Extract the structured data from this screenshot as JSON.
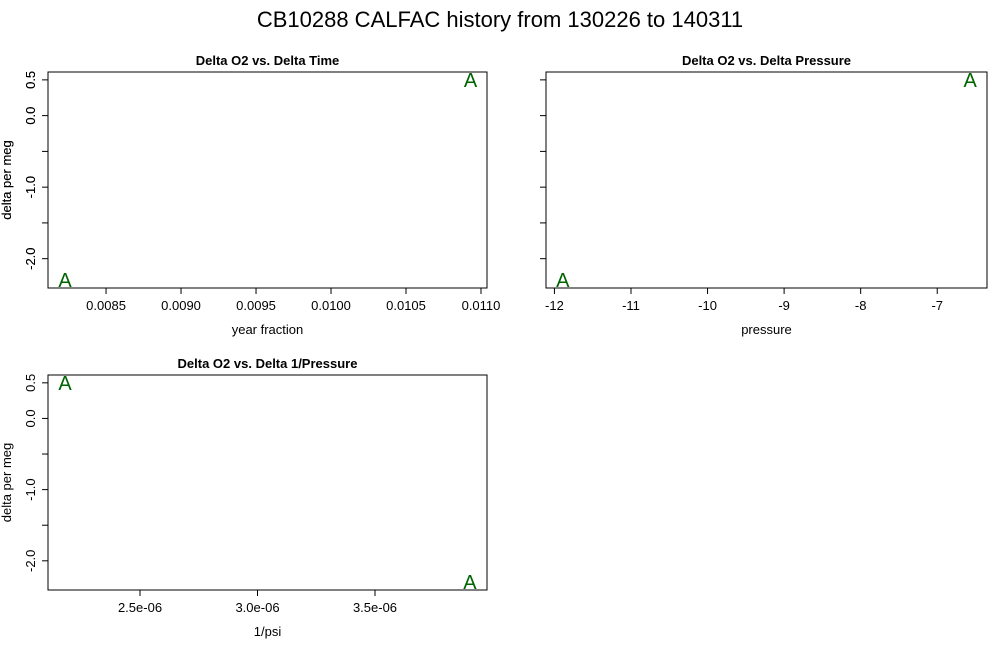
{
  "title": "CB10288   CALFAC history from  130226  to  140311",
  "chart_data": [
    {
      "type": "scatter",
      "title": "Delta O2 vs. Delta Time",
      "x_label": "year fraction",
      "y_label": "delta per meg",
      "marker": "A",
      "color": "#006400",
      "x": [
        0.008227,
        0.01093
      ],
      "values": [
        -2.3,
        0.5
      ],
      "xlim": [
        0.008113,
        0.01104
      ],
      "ylim": [
        -2.41,
        0.61
      ],
      "xticks": [
        0.0085,
        {
          "value": 0.009,
          "label": "0.0090"
        },
        0.0095,
        {
          "value": 0.01,
          "label": "0.0100"
        },
        0.0105,
        {
          "value": 0.011,
          "label": "0.0110"
        }
      ],
      "yticks": [
        0.5,
        {
          "value": 0,
          "label": "0.0"
        },
        {
          "value": -0.5,
          "label": null
        },
        {
          "value": -1,
          "label": "-1.0"
        },
        {
          "value": -1.5,
          "label": null
        },
        {
          "value": -2,
          "label": "-2.0"
        }
      ]
    },
    {
      "type": "scatter",
      "title": "Delta O2 vs. Delta Pressure",
      "x_label": "pressure",
      "y_label": "delta per meg",
      "marker": "A",
      "color": "#006400",
      "x": [
        -11.89,
        -6.57
      ],
      "values": [
        -2.3,
        0.5
      ],
      "xlim": [
        -12.11,
        -6.35
      ],
      "ylim": [
        -2.41,
        0.61
      ],
      "xticks": [
        -12,
        -11,
        -10,
        -9,
        -8,
        -7
      ],
      "yticks": [
        0.5,
        {
          "value": 0,
          "label": "0.0"
        },
        {
          "value": -0.5,
          "label": null
        },
        {
          "value": -1,
          "label": "-1.0"
        },
        {
          "value": -1.5,
          "label": null
        },
        {
          "value": -2,
          "label": "-2.0"
        }
      ]
    },
    {
      "type": "scatter",
      "title": "Delta O2 vs. Delta 1/Pressure",
      "x_label": "1/psi",
      "y_label": "delta per meg",
      "marker": "A",
      "color": "#006400",
      "x": [
        2.181e-06,
        3.904e-06
      ],
      "values": [
        0.5,
        -2.3
      ],
      "xlim": [
        2.1085e-06,
        3.9766e-06
      ],
      "ylim": [
        -2.41,
        0.61
      ],
      "xticks": [
        {
          "value": 2.5e-06,
          "label": "2.5e-06"
        },
        {
          "value": 3e-06,
          "label": "3.0e-06"
        },
        {
          "value": 3.5e-06,
          "label": "3.5e-06"
        }
      ],
      "yticks": [
        0.5,
        {
          "value": 0,
          "label": "0.0"
        },
        {
          "value": -0.5,
          "label": null
        },
        {
          "value": -1,
          "label": "-1.0"
        },
        {
          "value": -1.5,
          "label": null
        },
        {
          "value": -2,
          "label": "-2.0"
        }
      ]
    }
  ]
}
